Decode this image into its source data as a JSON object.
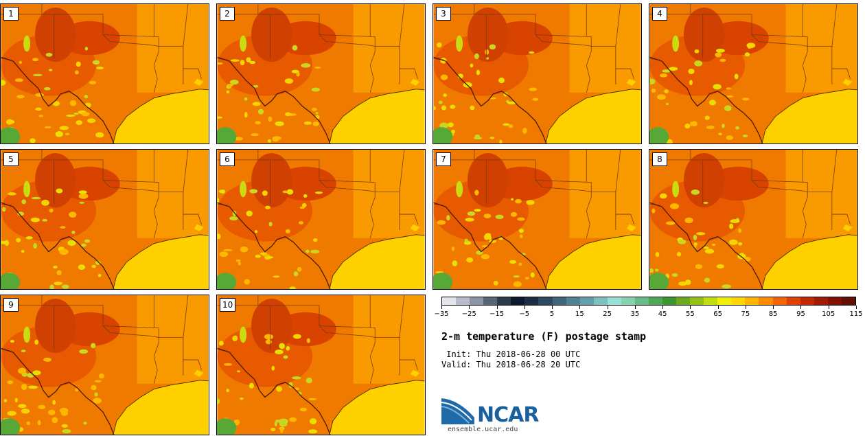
{
  "panels": [
    {
      "label": "1"
    },
    {
      "label": "2"
    },
    {
      "label": "3"
    },
    {
      "label": "4"
    },
    {
      "label": "5"
    },
    {
      "label": "6"
    },
    {
      "label": "7"
    },
    {
      "label": "8"
    },
    {
      "label": "9"
    },
    {
      "label": "10"
    }
  ],
  "colorbar": {
    "colors": [
      "#e4e4ea",
      "#b8bcc8",
      "#8c94a6",
      "#5a6478",
      "#2e3a4c",
      "#0c1a30",
      "#1c2e44",
      "#2e4a5e",
      "#3f6576",
      "#518290",
      "#63a0aa",
      "#7cc0c0",
      "#98e0d6",
      "#84d2b0",
      "#66bc88",
      "#4ea85a",
      "#3c9630",
      "#6aaa1c",
      "#94c212",
      "#c2dc0c",
      "#eef008",
      "#ffd800",
      "#ffb400",
      "#ff8c00",
      "#f46400",
      "#e04000",
      "#c42800",
      "#a41a00",
      "#841000",
      "#641000"
    ],
    "tick_labels": [
      "−35",
      "−25",
      "−15",
      "−5",
      "5",
      "15",
      "25",
      "35",
      "45",
      "55",
      "65",
      "75",
      "85",
      "95",
      "105",
      "115"
    ]
  },
  "title": "2-m temperature (F) postage stamp",
  "init": " Init: Thu 2018-06-28 00 UTC",
  "valid": "Valid: Thu 2018-06-28 20 UTC",
  "logo": {
    "text": "NCAR",
    "url": "ensemble.ucar.edu"
  }
}
